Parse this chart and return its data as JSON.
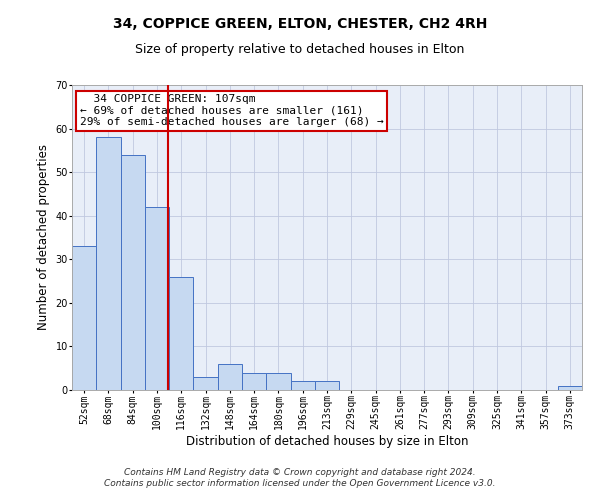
{
  "title": "34, COPPICE GREEN, ELTON, CHESTER, CH2 4RH",
  "subtitle": "Size of property relative to detached houses in Elton",
  "xlabel": "Distribution of detached houses by size in Elton",
  "ylabel": "Number of detached properties",
  "footer_line1": "Contains HM Land Registry data © Crown copyright and database right 2024.",
  "footer_line2": "Contains public sector information licensed under the Open Government Licence v3.0.",
  "bin_labels": [
    "52sqm",
    "68sqm",
    "84sqm",
    "100sqm",
    "116sqm",
    "132sqm",
    "148sqm",
    "164sqm",
    "180sqm",
    "196sqm",
    "213sqm",
    "229sqm",
    "245sqm",
    "261sqm",
    "277sqm",
    "293sqm",
    "309sqm",
    "325sqm",
    "341sqm",
    "357sqm",
    "373sqm"
  ],
  "bar_values": [
    33,
    58,
    54,
    42,
    26,
    3,
    6,
    4,
    4,
    2,
    2,
    0,
    0,
    0,
    0,
    0,
    0,
    0,
    0,
    0,
    1
  ],
  "bar_color": "#c6d9f1",
  "bar_edge_color": "#4472c4",
  "ylim": [
    0,
    70
  ],
  "yticks": [
    0,
    10,
    20,
    30,
    40,
    50,
    60,
    70
  ],
  "property_size_sqm": 107,
  "vline_color": "#cc0000",
  "annotation_text": "  34 COPPICE GREEN: 107sqm\n← 69% of detached houses are smaller (161)\n29% of semi-detached houses are larger (68) →",
  "annotation_box_color": "#cc0000",
  "background_color": "#e8eef8",
  "grid_color": "#c0c8e0",
  "title_fontsize": 10,
  "subtitle_fontsize": 9,
  "axis_label_fontsize": 8.5,
  "tick_fontsize": 7,
  "annotation_fontsize": 8,
  "footer_fontsize": 6.5
}
